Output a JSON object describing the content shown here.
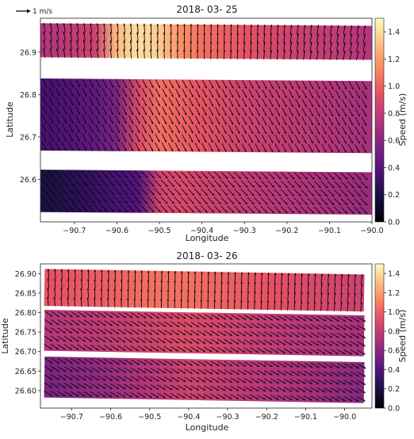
{
  "figure": {
    "scale_label": "1 m/s"
  },
  "chart_data": [
    {
      "type": "heatmap",
      "subtype": "speed field with current-vector overlay",
      "title": "2018- 03- 25",
      "xlabel": "Longitude",
      "ylabel": "Latitude",
      "xlim": [
        -90.78,
        -90.0
      ],
      "ylim": [
        26.5,
        26.98
      ],
      "xticks": [
        -90.7,
        -90.6,
        -90.5,
        -90.4,
        -90.3,
        -90.2,
        -90.1,
        -90.0
      ],
      "xtick_labels": [
        "−90.7",
        "−90.6",
        "−90.5",
        "−90.4",
        "−90.3",
        "−90.2",
        "−90.1",
        "−90.0"
      ],
      "yticks": [
        26.6,
        26.7,
        26.8,
        26.9
      ],
      "ytick_labels": [
        "26.6",
        "26.7",
        "26.8",
        "26.9"
      ],
      "colorbar": {
        "label": "Speed (m/s)",
        "colormap": "magma",
        "range": [
          0.0,
          1.5
        ],
        "ticks": [
          0.0,
          0.2,
          0.4,
          0.6,
          0.8,
          1.0,
          1.2,
          1.4
        ],
        "tick_labels": [
          "0.0",
          "0.2",
          "0.4",
          "0.6",
          "0.8",
          "1.0",
          "1.2",
          "1.4"
        ]
      },
      "bands": [
        {
          "lat_top": 26.965,
          "lat_bottom": 26.885,
          "lon_west": -90.78,
          "lon_east": -90.0,
          "tilt_deg": 0.45
        },
        {
          "lat_top": 26.835,
          "lat_bottom": 26.665,
          "lon_west": -90.78,
          "lon_east": -90.0,
          "tilt_deg": 0.45
        },
        {
          "lat_top": 26.62,
          "lat_bottom": 26.52,
          "lon_west": -90.78,
          "lon_east": -90.0,
          "tilt_deg": 0.45
        }
      ],
      "speed_field": {
        "bands": [
          {
            "lon": [
              -90.75,
              -90.65,
              -90.6,
              -90.55,
              -90.5,
              -90.45,
              -90.4,
              -90.3,
              -90.2,
              -90.1,
              -90.02
            ],
            "speed": [
              0.75,
              0.85,
              1.3,
              1.4,
              1.35,
              1.15,
              1.05,
              0.95,
              0.85,
              0.8,
              0.75
            ]
          },
          {
            "lon": [
              -90.75,
              -90.65,
              -90.6,
              -90.55,
              -90.5,
              -90.45,
              -90.4,
              -90.3,
              -90.2,
              -90.1,
              -90.02
            ],
            "speed": [
              0.35,
              0.45,
              0.55,
              0.9,
              1.05,
              1.0,
              0.95,
              0.85,
              0.8,
              0.75,
              0.7
            ]
          },
          {
            "lon": [
              -90.75,
              -90.65,
              -90.6,
              -90.55,
              -90.5,
              -90.45,
              -90.4,
              -90.3,
              -90.2,
              -90.1,
              -90.02
            ],
            "speed": [
              0.2,
              0.3,
              0.35,
              0.4,
              0.85,
              0.9,
              0.85,
              0.8,
              0.75,
              0.7,
              0.65
            ]
          }
        ]
      },
      "vectors": {
        "description": "current direction per band",
        "bands": [
          {
            "u_west": -0.2,
            "v_west": 1.0,
            "u_east": 0.2,
            "v_east": 0.95
          },
          {
            "u_west": 0.4,
            "v_west": -0.8,
            "u_east": 0.45,
            "v_east": -0.8
          },
          {
            "u_west": 0.55,
            "v_west": -0.6,
            "u_east": 0.6,
            "v_east": -0.6
          }
        ]
      }
    },
    {
      "type": "heatmap",
      "subtype": "speed field with current-vector overlay",
      "title": "2018- 03- 26",
      "xlabel": "Longitude",
      "ylabel": "Latitude",
      "xlim": [
        -90.78,
        -89.93
      ],
      "ylim": [
        26.555,
        26.925
      ],
      "xticks": [
        -90.7,
        -90.6,
        -90.5,
        -90.4,
        -90.3,
        -90.2,
        -90.1,
        -90.0
      ],
      "xtick_labels": [
        "−90.7",
        "−90.6",
        "−90.5",
        "−90.4",
        "−90.3",
        "−90.2",
        "−90.1",
        "−90.0"
      ],
      "yticks": [
        26.6,
        26.65,
        26.7,
        26.75,
        26.8,
        26.85,
        26.9
      ],
      "ytick_labels": [
        "26.60",
        "26.65",
        "26.70",
        "26.75",
        "26.80",
        "26.85",
        "26.90"
      ],
      "colorbar": {
        "label": "Speed (m/s)",
        "colormap": "magma",
        "range": [
          0.0,
          1.5
        ],
        "ticks": [
          0.0,
          0.2,
          0.4,
          0.6,
          0.8,
          1.0,
          1.2,
          1.4
        ],
        "tick_labels": [
          "0.0",
          "0.2",
          "0.4",
          "0.6",
          "0.8",
          "1.0",
          "1.2",
          "1.4"
        ]
      },
      "bands": [
        {
          "lat_top": 26.905,
          "lat_bottom": 26.81,
          "lon_west": -90.77,
          "lon_east": -89.95,
          "tilt_deg": 1.0
        },
        {
          "lat_top": 26.8,
          "lat_bottom": 26.695,
          "lon_west": -90.77,
          "lon_east": -89.95,
          "tilt_deg": 1.0
        },
        {
          "lat_top": 26.68,
          "lat_bottom": 26.575,
          "lon_west": -90.77,
          "lon_east": -89.95,
          "tilt_deg": 1.0
        }
      ],
      "speed_field": {
        "bands": [
          {
            "lon": [
              -90.75,
              -90.6,
              -90.5,
              -90.4,
              -90.3,
              -90.2,
              -90.1,
              -89.97
            ],
            "speed": [
              0.95,
              1.0,
              1.05,
              1.05,
              1.0,
              0.95,
              0.9,
              0.85
            ]
          },
          {
            "lon": [
              -90.75,
              -90.6,
              -90.5,
              -90.4,
              -90.3,
              -90.2,
              -90.1,
              -89.97
            ],
            "speed": [
              0.75,
              0.8,
              0.85,
              0.9,
              0.85,
              0.8,
              0.75,
              0.7
            ]
          },
          {
            "lon": [
              -90.75,
              -90.6,
              -90.5,
              -90.4,
              -90.3,
              -90.2,
              -90.1,
              -89.97
            ],
            "speed": [
              0.55,
              0.65,
              0.75,
              0.85,
              0.8,
              0.75,
              0.7,
              0.6
            ]
          }
        ]
      },
      "vectors": {
        "description": "current direction per band",
        "bands": [
          {
            "u_west": -0.1,
            "v_west": 1.0,
            "u_east": 0.1,
            "v_east": 1.0
          },
          {
            "u_west": 0.7,
            "v_west": -0.45,
            "u_east": 0.75,
            "v_east": -0.4
          },
          {
            "u_west": 0.75,
            "v_west": -0.45,
            "u_east": 0.8,
            "v_east": -0.4
          }
        ]
      }
    }
  ]
}
